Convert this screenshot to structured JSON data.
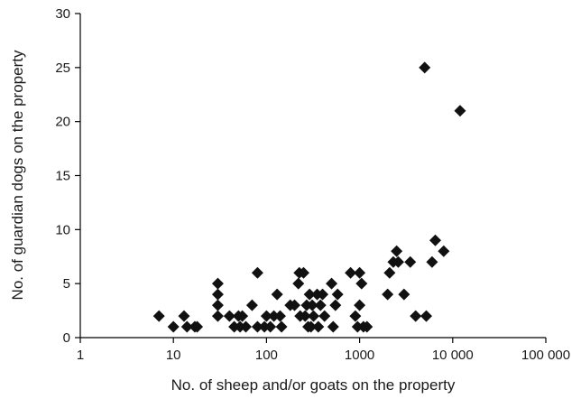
{
  "chart_data": {
    "type": "scatter",
    "title": "",
    "xlabel": "No. of sheep and/or goats on the property",
    "ylabel": "No. of guardian dogs on the property",
    "xscale": "log",
    "xlim": [
      1,
      100000
    ],
    "ylim": [
      0,
      30
    ],
    "xticks": [
      1,
      10,
      100,
      1000,
      10000,
      100000
    ],
    "xtick_labels": [
      "1",
      "10",
      "100",
      "1000",
      "10 000",
      "100 000"
    ],
    "yticks": [
      0,
      5,
      10,
      15,
      20,
      25,
      30
    ],
    "ytick_labels": [
      "0",
      "5",
      "10",
      "15",
      "20",
      "25",
      "30"
    ],
    "grid": false,
    "marker": "diamond",
    "marker_color": "#111111",
    "series": [
      {
        "points": [
          [
            7,
            2
          ],
          [
            10,
            1
          ],
          [
            13,
            2
          ],
          [
            14,
            1
          ],
          [
            17,
            1
          ],
          [
            18,
            1
          ],
          [
            30,
            5
          ],
          [
            30,
            4
          ],
          [
            30,
            3
          ],
          [
            30,
            2
          ],
          [
            40,
            2
          ],
          [
            45,
            1
          ],
          [
            50,
            2
          ],
          [
            52,
            1
          ],
          [
            55,
            2
          ],
          [
            60,
            1
          ],
          [
            70,
            3
          ],
          [
            80,
            6
          ],
          [
            80,
            1
          ],
          [
            95,
            1
          ],
          [
            100,
            2
          ],
          [
            110,
            1
          ],
          [
            120,
            2
          ],
          [
            130,
            4
          ],
          [
            140,
            2
          ],
          [
            145,
            1
          ],
          [
            180,
            3
          ],
          [
            200,
            3
          ],
          [
            220,
            5
          ],
          [
            225,
            6
          ],
          [
            230,
            2
          ],
          [
            250,
            6
          ],
          [
            260,
            2
          ],
          [
            270,
            3
          ],
          [
            280,
            1
          ],
          [
            290,
            4
          ],
          [
            300,
            1
          ],
          [
            310,
            3
          ],
          [
            320,
            2
          ],
          [
            350,
            4
          ],
          [
            360,
            1
          ],
          [
            380,
            3
          ],
          [
            400,
            4
          ],
          [
            420,
            2
          ],
          [
            500,
            5
          ],
          [
            520,
            1
          ],
          [
            550,
            3
          ],
          [
            580,
            4
          ],
          [
            800,
            6
          ],
          [
            900,
            2
          ],
          [
            950,
            1
          ],
          [
            1000,
            6
          ],
          [
            1000,
            3
          ],
          [
            1050,
            5
          ],
          [
            1100,
            1
          ],
          [
            1200,
            1
          ],
          [
            2000,
            4
          ],
          [
            2100,
            6
          ],
          [
            2300,
            7
          ],
          [
            2500,
            8
          ],
          [
            2600,
            7
          ],
          [
            3000,
            4
          ],
          [
            3500,
            7
          ],
          [
            4000,
            2
          ],
          [
            5000,
            25
          ],
          [
            5200,
            2
          ],
          [
            6000,
            7
          ],
          [
            6500,
            9
          ],
          [
            8000,
            8
          ],
          [
            12000,
            21
          ]
        ]
      }
    ]
  }
}
